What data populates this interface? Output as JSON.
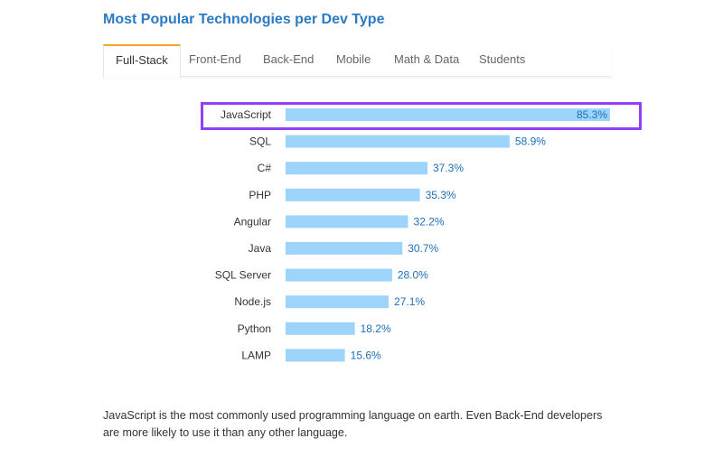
{
  "header": {
    "title": "Most Popular Technologies per Dev Type"
  },
  "tabs": [
    {
      "label": "Full-Stack",
      "active": true
    },
    {
      "label": "Front-End"
    },
    {
      "label": "Back-End"
    },
    {
      "label": "Mobile"
    },
    {
      "label": "Math & Data"
    },
    {
      "label": "Students"
    }
  ],
  "chart_data": {
    "type": "bar",
    "orientation": "horizontal",
    "categories": [
      "JavaScript",
      "SQL",
      "C#",
      "PHP",
      "Angular",
      "Java",
      "SQL Server",
      "Node.js",
      "Python",
      "LAMP"
    ],
    "values": [
      85.3,
      58.9,
      37.3,
      35.3,
      32.2,
      30.7,
      28.0,
      27.1,
      18.2,
      15.6
    ],
    "labels": [
      "85.3%",
      "58.9%",
      "37.3%",
      "35.3%",
      "32.2%",
      "30.7%",
      "28.0%",
      "27.1%",
      "18.2%",
      "15.6%"
    ],
    "highlighted": "JavaScript",
    "xlim": [
      0,
      85.3
    ],
    "bar_color": "#9dd4fb",
    "label_color": "#1d6fb8",
    "highlight_color": "#9140f5"
  },
  "description": "JavaScript is the most commonly used programming language on earth. Even Back-End developers are more likely to use it than any other language."
}
